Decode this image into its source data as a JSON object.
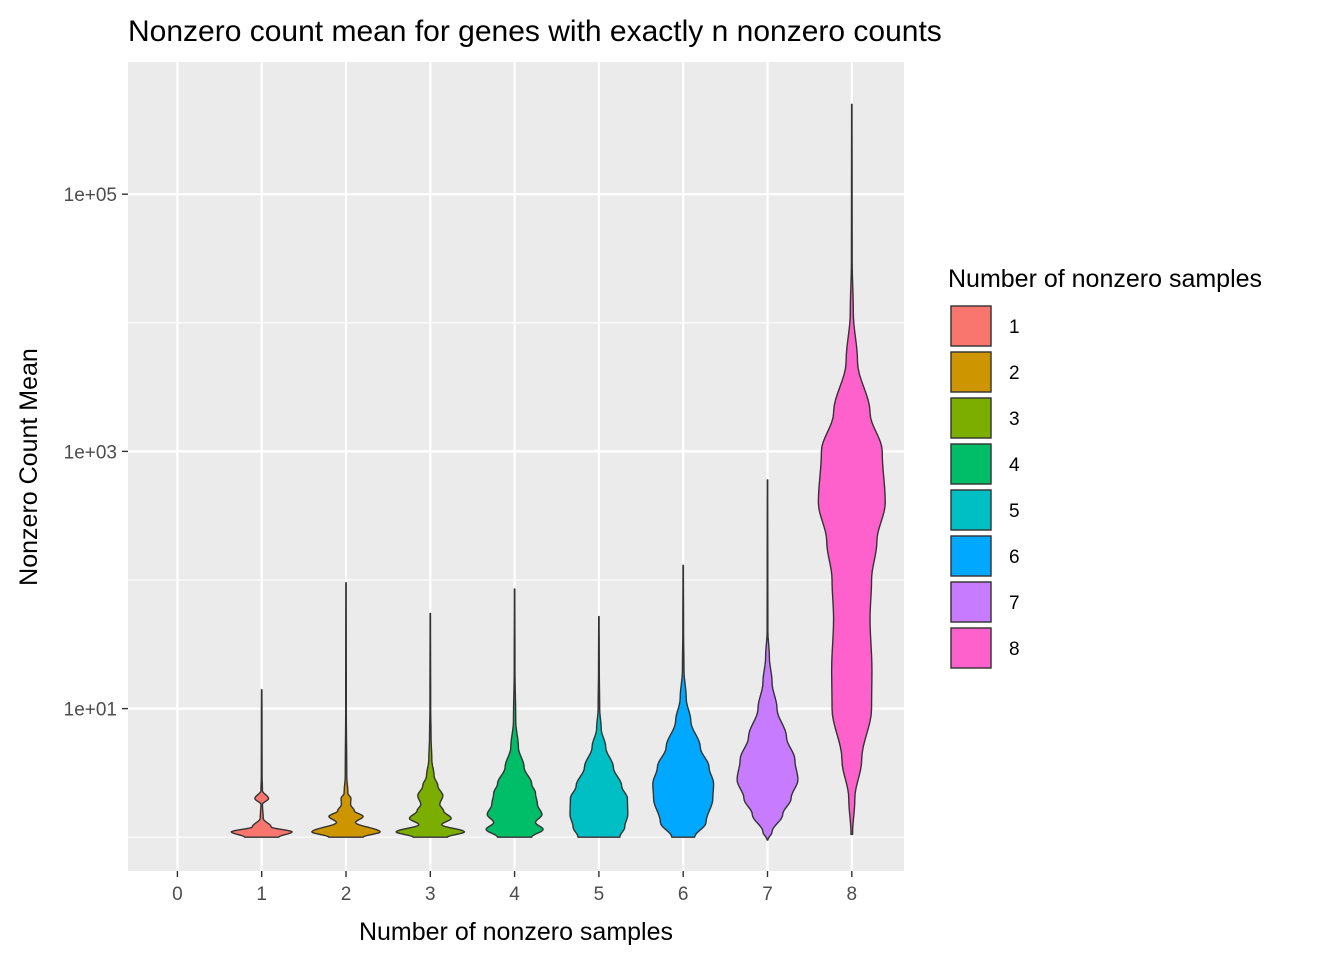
{
  "chart_data": {
    "type": "violin",
    "title": "Nonzero count mean for genes with exactly n nonzero counts",
    "xlabel": "Number of nonzero samples",
    "ylabel": "Nonzero Count Mean",
    "x_ticks": [
      "0",
      "1",
      "2",
      "3",
      "4",
      "5",
      "6",
      "7",
      "8"
    ],
    "y_scale": "log10",
    "y_ticks": [
      {
        "value": 10,
        "label": "1e+01"
      },
      {
        "value": 1000,
        "label": "1e+03"
      },
      {
        "value": 100000,
        "label": "1e+05"
      }
    ],
    "y_minor_ticks": [
      1,
      100,
      10000
    ],
    "ylim": [
      0.5,
      600000
    ],
    "grid": true,
    "legend": {
      "title": "Number of nonzero samples",
      "position": "right",
      "entries": [
        {
          "label": "1",
          "color": "#F8766D"
        },
        {
          "label": "2",
          "color": "#CD9600"
        },
        {
          "label": "3",
          "color": "#7CAE00"
        },
        {
          "label": "4",
          "color": "#00BE67"
        },
        {
          "label": "5",
          "color": "#00BFC4"
        },
        {
          "label": "6",
          "color": "#00A9FF"
        },
        {
          "label": "7",
          "color": "#C77CFF"
        },
        {
          "label": "8",
          "color": "#FF61CC"
        }
      ]
    },
    "series": [
      {
        "x": 1,
        "color": "#F8766D",
        "profile": [
          [
            1.0,
            0.45
          ],
          [
            1.1,
            0.8
          ],
          [
            1.2,
            0.25
          ],
          [
            1.4,
            0.04
          ],
          [
            1.8,
            0.02
          ],
          [
            2.0,
            0.18
          ],
          [
            2.3,
            0.02
          ],
          [
            3.0,
            0.01
          ],
          [
            8.0,
            0.008
          ],
          [
            14.0,
            0.005
          ]
        ]
      },
      {
        "x": 2,
        "color": "#CD9600",
        "profile": [
          [
            1.0,
            0.45
          ],
          [
            1.1,
            0.9
          ],
          [
            1.3,
            0.25
          ],
          [
            1.45,
            0.45
          ],
          [
            1.6,
            0.22
          ],
          [
            1.8,
            0.12
          ],
          [
            2.0,
            0.13
          ],
          [
            2.2,
            0.05
          ],
          [
            3.0,
            0.02
          ],
          [
            10.0,
            0.008
          ],
          [
            95.0,
            0.005
          ]
        ]
      },
      {
        "x": 3,
        "color": "#7CAE00",
        "profile": [
          [
            1.0,
            0.45
          ],
          [
            1.1,
            0.9
          ],
          [
            1.25,
            0.3
          ],
          [
            1.4,
            0.55
          ],
          [
            1.6,
            0.35
          ],
          [
            1.8,
            0.25
          ],
          [
            2.1,
            0.33
          ],
          [
            2.5,
            0.2
          ],
          [
            3.0,
            0.1
          ],
          [
            4.0,
            0.04
          ],
          [
            6.0,
            0.02
          ],
          [
            10.0,
            0.01
          ],
          [
            55.0,
            0.005
          ]
        ]
      },
      {
        "x": 4,
        "color": "#00BE67",
        "profile": [
          [
            1.0,
            0.45
          ],
          [
            1.15,
            0.75
          ],
          [
            1.3,
            0.55
          ],
          [
            1.5,
            0.72
          ],
          [
            1.8,
            0.6
          ],
          [
            2.2,
            0.55
          ],
          [
            2.6,
            0.45
          ],
          [
            3.5,
            0.25
          ],
          [
            5.0,
            0.1
          ],
          [
            8.0,
            0.03
          ],
          [
            20.0,
            0.01
          ],
          [
            85.0,
            0.005
          ]
        ]
      },
      {
        "x": 5,
        "color": "#00BFC4",
        "profile": [
          [
            1.0,
            0.55
          ],
          [
            1.2,
            0.68
          ],
          [
            1.5,
            0.76
          ],
          [
            2.0,
            0.75
          ],
          [
            2.5,
            0.6
          ],
          [
            3.5,
            0.38
          ],
          [
            5.0,
            0.18
          ],
          [
            7.0,
            0.06
          ],
          [
            10.0,
            0.02
          ],
          [
            20.0,
            0.01
          ],
          [
            52.0,
            0.005
          ]
        ]
      },
      {
        "x": 6,
        "color": "#00A9FF",
        "profile": [
          [
            1.0,
            0.3
          ],
          [
            1.3,
            0.6
          ],
          [
            2.0,
            0.78
          ],
          [
            2.6,
            0.8
          ],
          [
            3.5,
            0.68
          ],
          [
            5.0,
            0.45
          ],
          [
            8.0,
            0.2
          ],
          [
            12.0,
            0.08
          ],
          [
            20.0,
            0.02
          ],
          [
            40.0,
            0.01
          ],
          [
            130.0,
            0.005
          ]
        ]
      },
      {
        "x": 7,
        "color": "#C77CFF",
        "profile": [
          [
            0.95,
            0.01
          ],
          [
            1.1,
            0.12
          ],
          [
            1.5,
            0.4
          ],
          [
            2.0,
            0.62
          ],
          [
            2.8,
            0.8
          ],
          [
            4.0,
            0.72
          ],
          [
            6.0,
            0.5
          ],
          [
            10.0,
            0.25
          ],
          [
            16.0,
            0.12
          ],
          [
            25.0,
            0.05
          ],
          [
            40.0,
            0.01
          ],
          [
            100.0,
            0.008
          ],
          [
            600.0,
            0.005
          ]
        ]
      },
      {
        "x": 8,
        "color": "#FF61CC",
        "profile": [
          [
            1.05,
            0.02
          ],
          [
            2.0,
            0.08
          ],
          [
            4.0,
            0.26
          ],
          [
            10.0,
            0.52
          ],
          [
            20.0,
            0.53
          ],
          [
            50.0,
            0.48
          ],
          [
            100.0,
            0.52
          ],
          [
            200.0,
            0.66
          ],
          [
            400.0,
            0.88
          ],
          [
            1000.0,
            0.8
          ],
          [
            2000.0,
            0.48
          ],
          [
            5000.0,
            0.15
          ],
          [
            12000.0,
            0.04
          ],
          [
            30000.0,
            0.01
          ],
          [
            100000.0,
            0.008
          ],
          [
            500000.0,
            0.005
          ]
        ]
      }
    ]
  }
}
